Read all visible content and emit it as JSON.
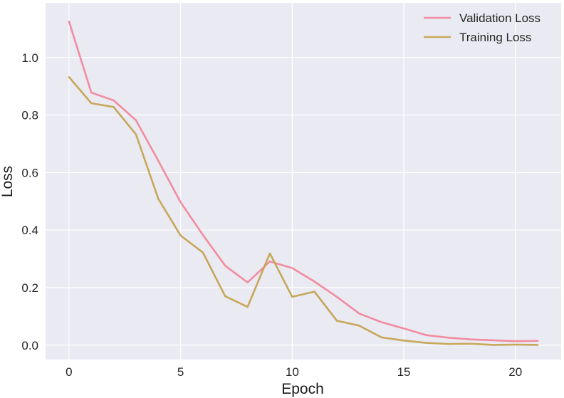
{
  "chart_data": {
    "type": "line",
    "title": "",
    "xlabel": "Epoch",
    "ylabel": "Loss",
    "xlim": [
      -1.05,
      22.05
    ],
    "ylim": [
      -0.05,
      1.19
    ],
    "xticks": [
      0,
      5,
      10,
      15,
      20
    ],
    "yticks": [
      0.0,
      0.2,
      0.4,
      0.6,
      0.8,
      1.0
    ],
    "xtick_labels": [
      "0",
      "5",
      "10",
      "15",
      "20"
    ],
    "ytick_labels": [
      "0.0",
      "0.2",
      "0.4",
      "0.6",
      "0.8",
      "1.0"
    ],
    "grid": true,
    "legend_position": "top-right",
    "x": [
      0,
      1,
      2,
      3,
      4,
      5,
      6,
      7,
      8,
      9,
      10,
      11,
      12,
      13,
      14,
      15,
      16,
      17,
      18,
      19,
      20,
      21
    ],
    "series": [
      {
        "name": "Validation Loss",
        "color": "#f28ca0",
        "values": [
          1.125,
          0.878,
          0.851,
          0.782,
          0.641,
          0.497,
          0.383,
          0.276,
          0.218,
          0.291,
          0.268,
          0.221,
          0.168,
          0.11,
          0.08,
          0.058,
          0.035,
          0.026,
          0.02,
          0.017,
          0.014,
          0.015
        ]
      },
      {
        "name": "Training Loss",
        "color": "#c7a75a",
        "values": [
          0.932,
          0.841,
          0.828,
          0.733,
          0.509,
          0.381,
          0.322,
          0.17,
          0.133,
          0.319,
          0.168,
          0.186,
          0.085,
          0.068,
          0.027,
          0.016,
          0.008,
          0.004,
          0.005,
          0.001,
          0.002,
          0.001
        ]
      }
    ]
  }
}
